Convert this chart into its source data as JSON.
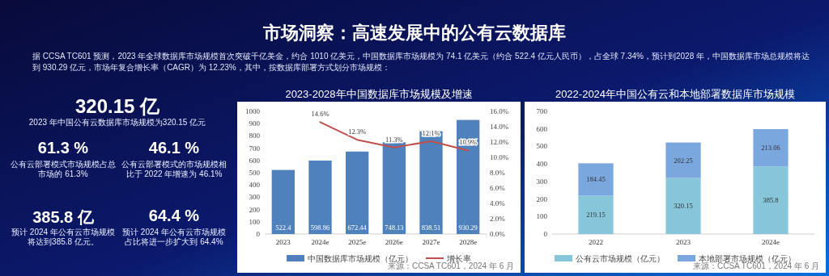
{
  "chart_data": [
    {
      "type": "other",
      "title": "市场洞察：高速发展中的公有云数据库",
      "annotations": [
        "据 CCSA TC601 预测，2023 年全球数据库市场规模首次突破千亿美金，约合 1010 亿美元，中国数据库市场规模为 74.1 亿美元（约合 522.4 亿元人民币），占全球 7.34%，预计到2028 年，中国数据库市场总规模将达到 930.29 亿元，市场年复合增长率（CAGR）为 12.23%，其中，按数据库部署方式划分市场规模：",
        "320.15 亿",
        "2023 年中国公有云数据库市场规模为320.15 亿元",
        "61.3 %",
        "公有云部署模式市场规模占总市场的 61.3%",
        "46.1 %",
        "公有云部署模式的市场规模相比于 2022 年增速为 46.1%",
        "385.8 亿",
        "预计 2024 年公有云市场规模将达到385.8 亿元。",
        "64.4 %",
        "预计 2024 年公有云市场规模占比将进一步扩大到 64.4%"
      ]
    },
    {
      "type": "bar",
      "title": "2023-2028年中国数据库市场规模及增速",
      "categories": [
        "2023",
        "2024e",
        "2025e",
        "2026e",
        "2027e",
        "2028e"
      ],
      "series": [
        {
          "name": "中国数据库市场规模（亿元）",
          "color": "#4f81bd",
          "values": [
            522.4,
            598.86,
            672.44,
            748.13,
            838.51,
            930.29
          ],
          "value_labels": [
            "522.4",
            "598.86",
            "672.44",
            "748.13",
            "838.51",
            "930.29"
          ]
        },
        {
          "name": "增长率",
          "type": "line",
          "axis": "y2",
          "color": "#c0504d",
          "values": [
            null,
            14.6,
            12.3,
            11.3,
            12.1,
            10.9
          ],
          "value_labels": [
            null,
            "14.6%",
            "12.3%",
            "11.3%",
            "12.1%",
            "10.9%"
          ]
        }
      ],
      "ylim": [
        0,
        1000
      ],
      "yticks": [
        0,
        100,
        200,
        300,
        400,
        500,
        600,
        700,
        800,
        900,
        1000
      ],
      "y2lim": [
        0,
        16
      ],
      "y2ticks": [
        {
          "value": 0,
          "label": "0.0%"
        },
        {
          "value": 2,
          "label": "2.0%"
        },
        {
          "value": 4,
          "label": "4.0%"
        },
        {
          "value": 6,
          "label": "6.0%"
        },
        {
          "value": 8,
          "label": "8.0%"
        },
        {
          "value": 10,
          "label": "10.0%"
        },
        {
          "value": 12,
          "label": "12.0%"
        },
        {
          "value": 14,
          "label": "14.0%"
        },
        {
          "value": 16,
          "label": "16.0%"
        }
      ],
      "data_labels": true,
      "legend": "bottom",
      "annotations": [
        "来源：CCSA TC601，2024 年 6 月"
      ]
    },
    {
      "type": "bar",
      "title": "2022-2024年中国公有云和本地部署数据库市场规模",
      "categories": [
        "2022",
        "2023",
        "2024e"
      ],
      "stacked": true,
      "series": [
        {
          "name": "公有云市场规模（亿元）",
          "color": "#86c5da",
          "values": [
            219.15,
            320.15,
            385.8
          ]
        },
        {
          "name": "本地部署市场规模（亿元）",
          "color": "#7ba7df",
          "values": [
            184.45,
            202.25,
            213.06
          ]
        }
      ],
      "ylim": [
        0,
        700
      ],
      "yticks": [
        0,
        100,
        200,
        300,
        400,
        500,
        600,
        700
      ],
      "data_labels": true,
      "legend": "bottom",
      "annotations": [
        "来源：CCSA TC601，2024 年 6 月"
      ]
    }
  ]
}
